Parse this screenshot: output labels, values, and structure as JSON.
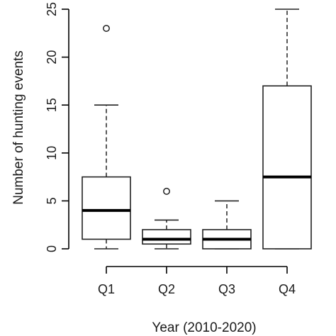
{
  "chart_data": {
    "type": "box",
    "categories": [
      "Q1",
      "Q2",
      "Q3",
      "Q4"
    ],
    "xlabel": "Year (2010-2020)",
    "ylabel": "Number of hunting events",
    "ylim": [
      0,
      25
    ],
    "yticks": [
      0,
      5,
      10,
      15,
      20,
      25
    ],
    "grid": false,
    "boxes": [
      {
        "category": "Q1",
        "min": 0,
        "q1": 1,
        "median": 4,
        "q3": 7.5,
        "max": 15,
        "outliers": [
          23
        ]
      },
      {
        "category": "Q2",
        "min": 0,
        "q1": 0.5,
        "median": 1,
        "q3": 2,
        "max": 3,
        "outliers": [
          6
        ]
      },
      {
        "category": "Q3",
        "min": 0,
        "q1": 0,
        "median": 1,
        "q3": 2,
        "max": 5,
        "outliers": []
      },
      {
        "category": "Q4",
        "min": 0,
        "q1": 0,
        "median": 7.5,
        "q3": 17,
        "max": 25,
        "outliers": []
      }
    ]
  }
}
